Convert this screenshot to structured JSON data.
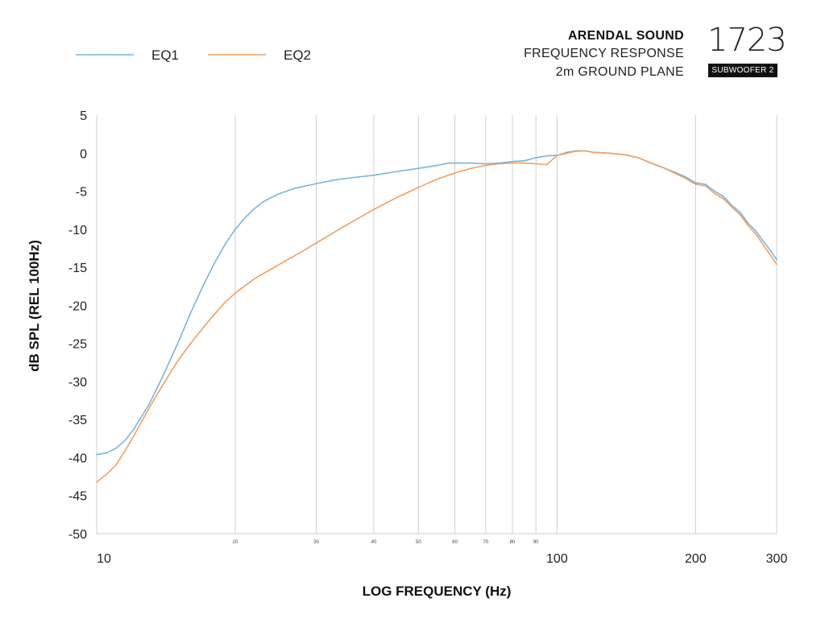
{
  "header": {
    "brand": "ARENDAL SOUND",
    "line2": "FREQUENCY RESPONSE",
    "line3": "2m GROUND PLANE",
    "model_number": "1723",
    "model_badge": "SUBWOOFER 2"
  },
  "chart_data": {
    "type": "line",
    "title": "",
    "xlabel": "LOG FREQUENCY (Hz)",
    "ylabel": "dB SPL (REL 100Hz)",
    "x_scale": "log",
    "xlim": [
      10,
      300
    ],
    "ylim": [
      -50,
      5
    ],
    "y_ticks": [
      5,
      0,
      -5,
      -10,
      -15,
      -20,
      -25,
      -30,
      -35,
      -40,
      -45,
      -50
    ],
    "x_major_ticks": [
      10,
      100,
      200,
      300
    ],
    "x_minor_ticks": [
      20,
      30,
      40,
      50,
      60,
      70,
      80,
      90
    ],
    "x_grid_lines": [
      20,
      30,
      40,
      50,
      60,
      70,
      80,
      90,
      100,
      200,
      300
    ],
    "legend_position": "top-left",
    "series": [
      {
        "name": "EQ1",
        "color": "#78b4dc",
        "points": [
          [
            10,
            -39.6
          ],
          [
            10.5,
            -39.4
          ],
          [
            11,
            -38.8
          ],
          [
            11.5,
            -37.8
          ],
          [
            12,
            -36.4
          ],
          [
            13,
            -33
          ],
          [
            14,
            -29
          ],
          [
            15,
            -25
          ],
          [
            16,
            -21
          ],
          [
            17,
            -17.5
          ],
          [
            18,
            -14.5
          ],
          [
            19,
            -12
          ],
          [
            20,
            -10
          ],
          [
            21,
            -8.5
          ],
          [
            22,
            -7.3
          ],
          [
            23,
            -6.4
          ],
          [
            24,
            -5.8
          ],
          [
            25,
            -5.3
          ],
          [
            27,
            -4.6
          ],
          [
            30,
            -4.0
          ],
          [
            33,
            -3.5
          ],
          [
            35,
            -3.3
          ],
          [
            40,
            -2.9
          ],
          [
            45,
            -2.4
          ],
          [
            50,
            -2.0
          ],
          [
            55,
            -1.6
          ],
          [
            58,
            -1.3
          ],
          [
            60,
            -1.3
          ],
          [
            65,
            -1.3
          ],
          [
            70,
            -1.4
          ],
          [
            75,
            -1.3
          ],
          [
            80,
            -1.1
          ],
          [
            85,
            -1.0
          ],
          [
            90,
            -0.6
          ],
          [
            95,
            -0.35
          ],
          [
            100,
            -0.3
          ],
          [
            105,
            0.1
          ],
          [
            110,
            0.3
          ],
          [
            115,
            0.3
          ],
          [
            120,
            0.1
          ],
          [
            130,
            0.0
          ],
          [
            140,
            -0.2
          ],
          [
            150,
            -0.6
          ],
          [
            160,
            -1.3
          ],
          [
            170,
            -1.9
          ],
          [
            180,
            -2.5
          ],
          [
            190,
            -3.1
          ],
          [
            200,
            -3.9
          ],
          [
            210,
            -4.1
          ],
          [
            220,
            -5.0
          ],
          [
            230,
            -5.7
          ],
          [
            240,
            -6.9
          ],
          [
            250,
            -7.8
          ],
          [
            260,
            -9.2
          ],
          [
            270,
            -10.2
          ],
          [
            280,
            -11.5
          ],
          [
            290,
            -12.7
          ],
          [
            300,
            -14.0
          ]
        ]
      },
      {
        "name": "EQ2",
        "color": "#f0a060",
        "points": [
          [
            10,
            -43.2
          ],
          [
            10.5,
            -42.2
          ],
          [
            11,
            -41.0
          ],
          [
            11.5,
            -39.2
          ],
          [
            12,
            -37.3
          ],
          [
            13,
            -33.5
          ],
          [
            14,
            -30.2
          ],
          [
            15,
            -27.3
          ],
          [
            16,
            -25.0
          ],
          [
            17,
            -23.0
          ],
          [
            18,
            -21.2
          ],
          [
            19,
            -19.6
          ],
          [
            20,
            -18.4
          ],
          [
            22,
            -16.5
          ],
          [
            24,
            -15.2
          ],
          [
            26,
            -14.0
          ],
          [
            28,
            -12.9
          ],
          [
            30,
            -11.8
          ],
          [
            33,
            -10.3
          ],
          [
            35,
            -9.4
          ],
          [
            40,
            -7.4
          ],
          [
            45,
            -5.8
          ],
          [
            50,
            -4.5
          ],
          [
            55,
            -3.4
          ],
          [
            60,
            -2.6
          ],
          [
            65,
            -2.0
          ],
          [
            70,
            -1.6
          ],
          [
            75,
            -1.4
          ],
          [
            80,
            -1.3
          ],
          [
            85,
            -1.3
          ],
          [
            90,
            -1.4
          ],
          [
            95,
            -1.5
          ],
          [
            100,
            -0.3
          ],
          [
            105,
            0.0
          ],
          [
            110,
            0.25
          ],
          [
            115,
            0.3
          ],
          [
            120,
            0.1
          ],
          [
            130,
            0.0
          ],
          [
            140,
            -0.2
          ],
          [
            150,
            -0.6
          ],
          [
            160,
            -1.3
          ],
          [
            170,
            -1.9
          ],
          [
            180,
            -2.6
          ],
          [
            190,
            -3.3
          ],
          [
            200,
            -4.1
          ],
          [
            210,
            -4.3
          ],
          [
            220,
            -5.3
          ],
          [
            230,
            -6.0
          ],
          [
            240,
            -7.1
          ],
          [
            250,
            -8.1
          ],
          [
            260,
            -9.5
          ],
          [
            270,
            -10.6
          ],
          [
            280,
            -12.0
          ],
          [
            290,
            -13.3
          ],
          [
            300,
            -14.6
          ]
        ]
      }
    ]
  }
}
